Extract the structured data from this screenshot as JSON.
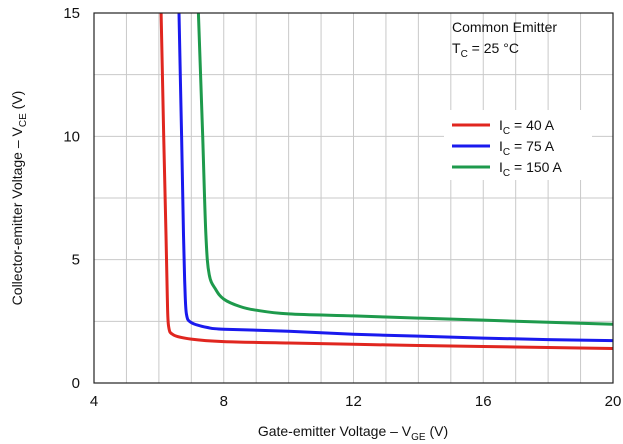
{
  "chart_data": {
    "type": "line",
    "xlabel": "Gate-emitter Voltage – V",
    "xlabel_sub": "GE",
    "xlabel_unit": " (V)",
    "ylabel": "Collector-emitter Voltage – V",
    "ylabel_sub": "CE",
    "ylabel_unit": " (V)",
    "xlim": [
      4,
      20
    ],
    "ylim": [
      0,
      15
    ],
    "x_ticks": [
      4,
      8,
      12,
      16,
      20
    ],
    "y_ticks": [
      0,
      5,
      10,
      15
    ],
    "grid": true,
    "legend_position": "top-right",
    "annotation": {
      "line1": "Common Emitter",
      "line2_prefix": "T",
      "line2_sub": "C",
      "line2_suffix": " = 25 °C"
    },
    "series": [
      {
        "name": "I",
        "name_sub": "C",
        "name_suffix": " = 40 A",
        "color": "#e0261f",
        "points": [
          [
            6.07,
            15
          ],
          [
            6.15,
            10
          ],
          [
            6.22,
            6
          ],
          [
            6.26,
            3.5
          ],
          [
            6.3,
            2.3
          ],
          [
            6.45,
            1.95
          ],
          [
            7,
            1.78
          ],
          [
            8,
            1.68
          ],
          [
            10,
            1.62
          ],
          [
            12,
            1.57
          ],
          [
            14,
            1.52
          ],
          [
            16,
            1.48
          ],
          [
            18,
            1.44
          ],
          [
            20,
            1.4
          ]
        ]
      },
      {
        "name": "I",
        "name_sub": "C",
        "name_suffix": " = 75 A",
        "color": "#1a1aee",
        "points": [
          [
            6.62,
            15
          ],
          [
            6.7,
            10
          ],
          [
            6.76,
            6
          ],
          [
            6.8,
            4
          ],
          [
            6.85,
            2.8
          ],
          [
            7,
            2.45
          ],
          [
            7.5,
            2.25
          ],
          [
            8,
            2.18
          ],
          [
            10,
            2.1
          ],
          [
            12,
            1.98
          ],
          [
            14,
            1.9
          ],
          [
            16,
            1.82
          ],
          [
            18,
            1.76
          ],
          [
            20,
            1.72
          ]
        ]
      },
      {
        "name": "I",
        "name_sub": "C",
        "name_suffix": " = 150 A",
        "color": "#1e9a4c",
        "points": [
          [
            7.22,
            15
          ],
          [
            7.35,
            10
          ],
          [
            7.45,
            6
          ],
          [
            7.55,
            4.4
          ],
          [
            7.75,
            3.8
          ],
          [
            8,
            3.4
          ],
          [
            8.5,
            3.1
          ],
          [
            9,
            2.95
          ],
          [
            10,
            2.8
          ],
          [
            12,
            2.72
          ],
          [
            14,
            2.63
          ],
          [
            16,
            2.55
          ],
          [
            18,
            2.46
          ],
          [
            20,
            2.38
          ]
        ]
      }
    ]
  }
}
